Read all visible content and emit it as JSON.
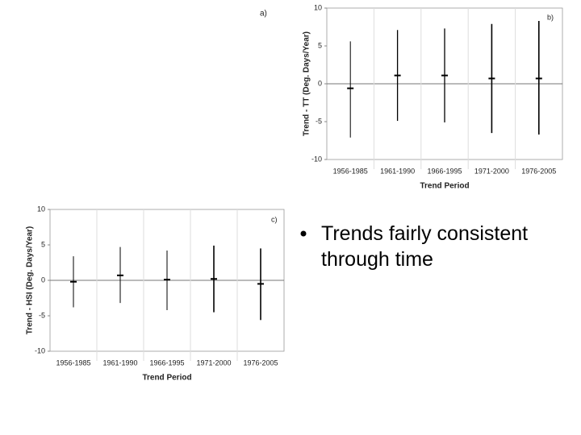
{
  "slide": {
    "panel_a_label": "a)",
    "bullet": "Trends fairly consistent through time"
  },
  "chart_data": [
    {
      "type": "errorbar",
      "panel_label": "b)",
      "x_label": "Trend Period",
      "y_label": "Trend - TT (Deg. Days/Year)",
      "categories": [
        "1956-1985",
        "1961-1990",
        "1966-1995",
        "1971-2000",
        "1976-2005"
      ],
      "values": [
        -0.6,
        1.1,
        1.1,
        0.7,
        0.7
      ],
      "lows": [
        -7.1,
        -4.9,
        -5.1,
        -6.5,
        -6.7
      ],
      "highs": [
        5.6,
        7.1,
        7.3,
        7.9,
        8.3
      ],
      "color": "#000000",
      "ylim": [
        -10,
        10
      ],
      "yticks": [
        -10,
        -5,
        0,
        5,
        10
      ]
    },
    {
      "type": "errorbar",
      "panel_label": "c)",
      "x_label": "Trend Period",
      "y_label": "Trend - HSI (Deg. Days/Year)",
      "categories": [
        "1956-1985",
        "1961-1990",
        "1966-1995",
        "1971-2000",
        "1976-2005"
      ],
      "values": [
        -0.2,
        0.7,
        0.1,
        0.2,
        -0.5
      ],
      "lows": [
        -3.8,
        -3.2,
        -4.2,
        -4.5,
        -5.6
      ],
      "highs": [
        3.4,
        4.7,
        4.2,
        4.9,
        4.5
      ],
      "color": "#000000",
      "ylim": [
        -10,
        10
      ],
      "yticks": [
        -10,
        -5,
        0,
        5,
        10
      ]
    }
  ]
}
